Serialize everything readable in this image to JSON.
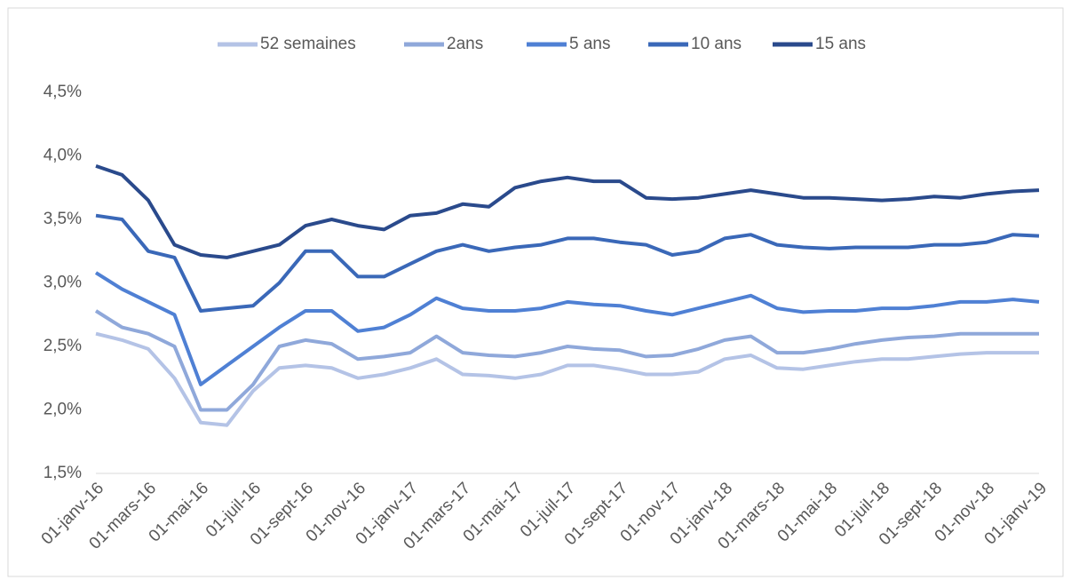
{
  "chart_data": {
    "type": "line",
    "categories": [
      "01-janv-16",
      null,
      "01-mars-16",
      null,
      "01-mai-16",
      null,
      "01-juil-16",
      null,
      "01-sept-16",
      null,
      "01-nov-16",
      null,
      "01-janv-17",
      null,
      "01-mars-17",
      null,
      "01-mai-17",
      null,
      "01-juil-17",
      null,
      "01-sept-17",
      null,
      "01-nov-17",
      null,
      "01-janv-18",
      null,
      "01-mars-18",
      null,
      "01-mai-18",
      null,
      "01-juil-18",
      null,
      "01-sept-18",
      null,
      "01-nov-18",
      null,
      "01-janv-19"
    ],
    "series": [
      {
        "name": "52 semaines",
        "color": "#b4c3e6",
        "values": [
          2.6,
          2.55,
          2.48,
          2.25,
          1.9,
          1.88,
          2.15,
          2.33,
          2.35,
          2.33,
          2.25,
          2.28,
          2.33,
          2.4,
          2.28,
          2.27,
          2.25,
          2.28,
          2.35,
          2.35,
          2.32,
          2.28,
          2.28,
          2.3,
          2.4,
          2.43,
          2.33,
          2.32,
          2.35,
          2.38,
          2.4,
          2.4,
          2.42,
          2.44,
          2.45,
          2.45,
          2.45
        ]
      },
      {
        "name": "2ans",
        "color": "#8fa8da",
        "values": [
          2.78,
          2.65,
          2.6,
          2.5,
          2.0,
          2.0,
          2.2,
          2.5,
          2.55,
          2.52,
          2.4,
          2.42,
          2.45,
          2.58,
          2.45,
          2.43,
          2.42,
          2.45,
          2.5,
          2.48,
          2.47,
          2.42,
          2.43,
          2.48,
          2.55,
          2.58,
          2.45,
          2.45,
          2.48,
          2.52,
          2.55,
          2.57,
          2.58,
          2.6,
          2.6,
          2.6,
          2.6
        ]
      },
      {
        "name": "5 ans",
        "color": "#4f80d4",
        "values": [
          3.08,
          2.95,
          2.85,
          2.75,
          2.2,
          2.35,
          2.5,
          2.65,
          2.78,
          2.78,
          2.62,
          2.65,
          2.75,
          2.88,
          2.8,
          2.78,
          2.78,
          2.8,
          2.85,
          2.83,
          2.82,
          2.78,
          2.75,
          2.8,
          2.85,
          2.9,
          2.8,
          2.77,
          2.78,
          2.78,
          2.8,
          2.8,
          2.82,
          2.85,
          2.85,
          2.87,
          2.85
        ]
      },
      {
        "name": "10 ans",
        "color": "#3a68b8",
        "values": [
          3.53,
          3.5,
          3.25,
          3.2,
          2.78,
          2.8,
          2.82,
          3.0,
          3.25,
          3.25,
          3.05,
          3.05,
          3.15,
          3.25,
          3.3,
          3.25,
          3.28,
          3.3,
          3.35,
          3.35,
          3.32,
          3.3,
          3.22,
          3.25,
          3.35,
          3.38,
          3.3,
          3.28,
          3.27,
          3.28,
          3.28,
          3.28,
          3.3,
          3.3,
          3.32,
          3.38,
          3.37
        ]
      },
      {
        "name": "15 ans",
        "color": "#2a4a8c",
        "values": [
          3.92,
          3.85,
          3.65,
          3.3,
          3.22,
          3.2,
          3.25,
          3.3,
          3.45,
          3.5,
          3.45,
          3.42,
          3.53,
          3.55,
          3.62,
          3.6,
          3.75,
          3.8,
          3.83,
          3.8,
          3.8,
          3.67,
          3.66,
          3.67,
          3.7,
          3.73,
          3.7,
          3.67,
          3.67,
          3.66,
          3.65,
          3.66,
          3.68,
          3.67,
          3.7,
          3.72,
          3.73
        ]
      }
    ],
    "ylim": [
      1.5,
      4.5
    ],
    "yticks": [
      {
        "value": 1.5,
        "label": "1,5%"
      },
      {
        "value": 2.0,
        "label": "2,0%"
      },
      {
        "value": 2.5,
        "label": "2,5%"
      },
      {
        "value": 3.0,
        "label": "3,0%"
      },
      {
        "value": 3.5,
        "label": "3,5%"
      },
      {
        "value": 4.0,
        "label": "4,0%"
      },
      {
        "value": 4.5,
        "label": "4,5%"
      }
    ],
    "grid": false,
    "legend": "top"
  }
}
